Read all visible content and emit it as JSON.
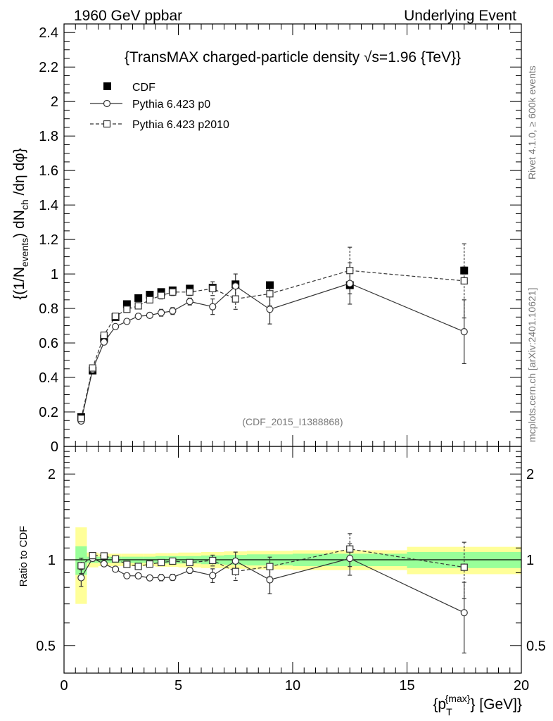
{
  "header": {
    "left": "1960 GeV ppbar",
    "right": "Underlying Event"
  },
  "side": {
    "rivet": "Rivet 4.1.0, ≥ 600k events",
    "mcplots": "mcplots.cern.ch [arXiv:2401.10621]"
  },
  "chart_data": {
    "type": "scatter",
    "title": "{TransMAX charged-particle density √s=1.96 {TeV}}",
    "watermark": "(CDF_2015_I1388868)",
    "ylabel": "{(1/N_events) dN_ch /dη dφ}",
    "ylabel_parts": {
      "a": "{(1/N",
      "b": "events",
      "c": ") dN",
      "d": "ch",
      "e": " /dη  dφ}"
    },
    "xlabel": "{p_T^{max}} [GeV]",
    "xlabel_parts": {
      "a": "{p",
      "b": "T",
      "c": "{max}",
      "d": "} [GeV]}"
    },
    "xlim": [
      0,
      20
    ],
    "ylim": [
      0,
      2.45
    ],
    "x_ticks": [
      "0",
      "5",
      "10",
      "15",
      "20"
    ],
    "y_ticks": [
      "0",
      "0.2",
      "0.4",
      "0.6",
      "0.8",
      "1",
      "1.2",
      "1.4",
      "1.6",
      "1.8",
      "2",
      "2.2",
      "2.4"
    ],
    "legend": [
      {
        "name": "CDF",
        "marker": "filled-square",
        "line": "none"
      },
      {
        "name": "Pythia 6.423 p0",
        "marker": "open-circle",
        "line": "solid"
      },
      {
        "name": "Pythia 6.423 p2010",
        "marker": "open-square",
        "line": "dashed"
      }
    ],
    "legend_position": "top-left",
    "bin_edges": [
      0.5,
      1.0,
      1.5,
      2.0,
      2.5,
      3.0,
      3.5,
      4.0,
      4.5,
      5.0,
      6.0,
      7.0,
      8.0,
      10.0,
      15.0,
      20.0
    ],
    "x": [
      0.75,
      1.25,
      1.75,
      2.25,
      2.75,
      3.25,
      3.75,
      4.25,
      4.75,
      5.5,
      6.5,
      7.5,
      9.0,
      12.5,
      17.5
    ],
    "series": [
      {
        "name": "CDF",
        "values": [
          0.17,
          0.44,
          0.625,
          0.75,
          0.825,
          0.86,
          0.88,
          0.895,
          0.905,
          0.915,
          0.92,
          0.94,
          0.935,
          0.935,
          1.02
        ],
        "errors": [
          0.01,
          0.01,
          0.01,
          0.01,
          0.01,
          0.01,
          0.01,
          0.01,
          0.01,
          0.01,
          0.01,
          0.01,
          0.01,
          0.015,
          0.02
        ]
      },
      {
        "name": "Pythia 6.423 p0",
        "values": [
          0.147,
          0.445,
          0.605,
          0.695,
          0.725,
          0.755,
          0.76,
          0.775,
          0.785,
          0.84,
          0.81,
          0.93,
          0.795,
          0.945,
          0.665
        ],
        "errors": [
          0.01,
          0.01,
          0.01,
          0.01,
          0.01,
          0.01,
          0.015,
          0.02,
          0.02,
          0.02,
          0.045,
          0.07,
          0.085,
          0.12,
          0.185
        ]
      },
      {
        "name": "Pythia 6.423 p2010",
        "values": [
          0.162,
          0.455,
          0.645,
          0.755,
          0.795,
          0.815,
          0.85,
          0.875,
          0.895,
          0.895,
          0.915,
          0.855,
          0.885,
          1.02,
          0.96
        ],
        "errors": [
          0.01,
          0.01,
          0.01,
          0.01,
          0.01,
          0.01,
          0.015,
          0.02,
          0.02,
          0.02,
          0.04,
          0.06,
          0.07,
          0.135,
          0.215
        ]
      }
    ],
    "ratio": {
      "ylabel": "Ratio to CDF",
      "y_ticks": [
        "0.5",
        "1",
        "2"
      ],
      "ylim": [
        0.4,
        2.5
      ],
      "scale": "log",
      "band_inner": [
        0.115,
        0.025,
        0.025,
        0.025,
        0.025,
        0.025,
        0.025,
        0.03,
        0.03,
        0.03,
        0.035,
        0.04,
        0.045,
        0.05,
        0.065
      ],
      "band_outer": [
        0.3,
        0.06,
        0.05,
        0.05,
        0.05,
        0.05,
        0.05,
        0.055,
        0.055,
        0.06,
        0.065,
        0.07,
        0.075,
        0.08,
        0.11
      ]
    }
  }
}
